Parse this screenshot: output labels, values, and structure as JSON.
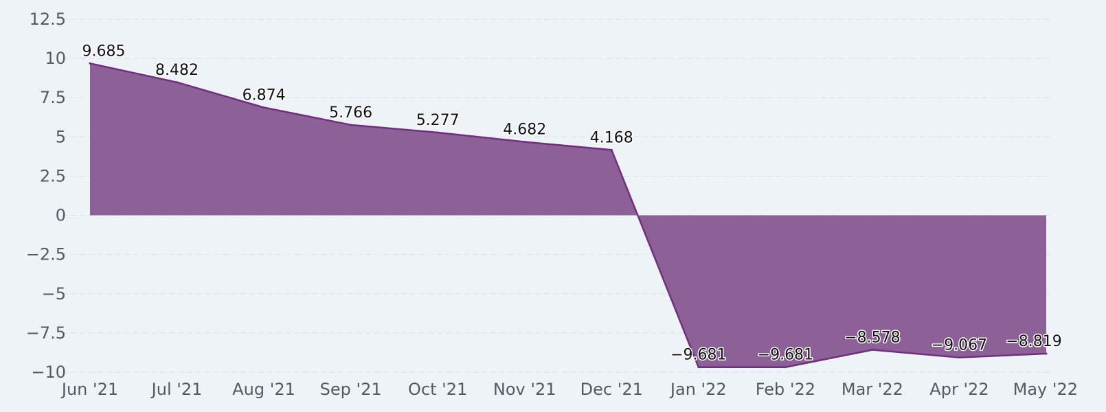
{
  "chart_data": {
    "type": "area",
    "categories": [
      "Jun '21",
      "Jul '21",
      "Aug '21",
      "Sep '21",
      "Oct '21",
      "Nov '21",
      "Dec '21",
      "Jan '22",
      "Feb '22",
      "Mar '22",
      "Apr '22",
      "May '22"
    ],
    "series": [
      {
        "values": [
          9.685,
          8.482,
          6.874,
          5.766,
          5.277,
          4.682,
          4.168,
          -9.681,
          -9.681,
          -8.578,
          -9.067,
          -8.819
        ],
        "data_labels": [
          "9.685",
          "8.482",
          "6.874",
          "5.766",
          "5.277",
          "4.682",
          "4.168",
          "−9.681",
          "−9.681",
          "−8.578",
          "−9.067",
          "−8.819"
        ]
      }
    ],
    "yticks": [
      12.5,
      10,
      7.5,
      5,
      2.5,
      0,
      -2.5,
      -5,
      -7.5,
      -10
    ],
    "ytick_labels": [
      "12.5",
      "10",
      "7.5",
      "5",
      "2.5",
      "0",
      "−2.5",
      "−5",
      "−7.5",
      "−10"
    ],
    "ylim": [
      -10,
      12.5
    ],
    "grid": true,
    "legend": "none",
    "title": "",
    "xlabel": "",
    "ylabel": "",
    "colors": {
      "fill": "#8e6098",
      "line": "#6f2f7f",
      "grid": "#d9dee6",
      "background": "#eef3f8"
    }
  }
}
